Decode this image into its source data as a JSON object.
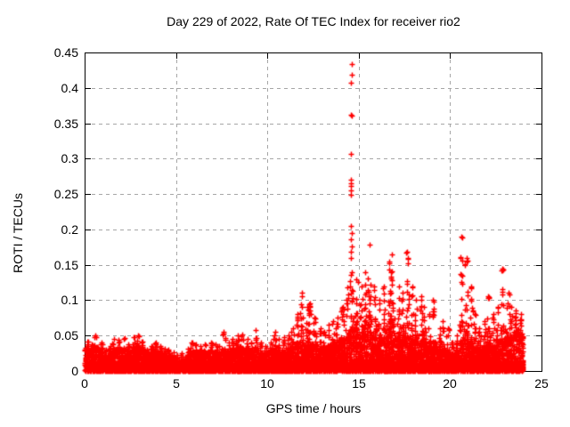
{
  "chart_data": {
    "type": "scatter",
    "title": "Day 229 of 2022, Rate Of TEC Index for receiver rio2",
    "xlabel": "GPS time / hours",
    "ylabel": "ROTI / TECUs",
    "xlim": [
      0,
      25
    ],
    "ylim": [
      0,
      0.45
    ],
    "xticks": [
      {
        "value": 0,
        "label": "0"
      },
      {
        "value": 5,
        "label": "5"
      },
      {
        "value": 10,
        "label": "10"
      },
      {
        "value": 15,
        "label": "15"
      },
      {
        "value": 20,
        "label": "20"
      },
      {
        "value": 25,
        "label": "25"
      }
    ],
    "yticks": [
      {
        "value": 0,
        "label": "0"
      },
      {
        "value": 0.05,
        "label": "0.05"
      },
      {
        "value": 0.1,
        "label": "0.1"
      },
      {
        "value": 0.15,
        "label": "0.15"
      },
      {
        "value": 0.2,
        "label": "0.2"
      },
      {
        "value": 0.25,
        "label": "0.25"
      },
      {
        "value": 0.3,
        "label": "0.3"
      },
      {
        "value": 0.35,
        "label": "0.35"
      },
      {
        "value": 0.4,
        "label": "0.4"
      },
      {
        "value": 0.45,
        "label": "0.45"
      }
    ],
    "grid": true,
    "legend": "none",
    "marker": "plus",
    "colors": {
      "points": "#ff0000",
      "grid": "#a6a6a6",
      "border": "#000000",
      "background": "#ffffff",
      "text": "#000000"
    },
    "series": [
      {
        "name": "ROTI",
        "data_span_hours": [
          0,
          24
        ],
        "density_bins": {
          "bin_width_hours": 0.25,
          "start_hour": 0,
          "band_top": [
            0.03,
            0.028,
            0.03,
            0.026,
            0.02,
            0.022,
            0.028,
            0.03,
            0.028,
            0.024,
            0.03,
            0.032,
            0.028,
            0.02,
            0.024,
            0.028,
            0.025,
            0.022,
            0.02,
            0.016,
            0.012,
            0.015,
            0.02,
            0.025,
            0.024,
            0.02,
            0.024,
            0.028,
            0.025,
            0.022,
            0.026,
            0.024,
            0.028,
            0.03,
            0.03,
            0.028,
            0.024,
            0.028,
            0.024,
            0.022,
            0.024,
            0.028,
            0.024,
            0.026,
            0.03,
            0.032,
            0.034,
            0.038,
            0.034,
            0.034,
            0.032,
            0.03,
            0.03,
            0.032,
            0.034,
            0.036,
            0.04,
            0.045,
            0.055,
            0.05,
            0.045,
            0.05,
            0.05,
            0.045,
            0.04,
            0.045,
            0.05,
            0.05,
            0.045,
            0.04,
            0.045,
            0.04,
            0.04,
            0.038,
            0.035,
            0.032,
            0.03,
            0.028,
            0.025,
            0.025,
            0.022,
            0.025,
            0.04,
            0.045,
            0.035,
            0.03,
            0.028,
            0.03,
            0.035,
            0.032,
            0.035,
            0.04,
            0.04,
            0.045,
            0.055,
            0.048
          ],
          "spike_top": [
            0.042,
            0.038,
            0.05,
            0.04,
            0.03,
            0.035,
            0.045,
            0.044,
            0.046,
            0.038,
            0.048,
            0.05,
            0.042,
            0.03,
            0.035,
            0.04,
            0.035,
            0.032,
            0.03,
            0.026,
            0.022,
            0.025,
            0.032,
            0.04,
            0.038,
            0.035,
            0.038,
            0.04,
            0.038,
            0.035,
            0.055,
            0.04,
            0.045,
            0.05,
            0.052,
            0.045,
            0.04,
            0.058,
            0.04,
            0.035,
            0.04,
            0.055,
            0.045,
            0.048,
            0.05,
            0.06,
            0.08,
            0.11,
            0.09,
            0.095,
            0.075,
            0.06,
            0.055,
            0.065,
            0.07,
            0.075,
            0.09,
            0.118,
            0.16,
            0.13,
            0.12,
            0.14,
            0.178,
            0.12,
            0.1,
            0.12,
            0.155,
            0.165,
            0.12,
            0.11,
            0.168,
            0.12,
            0.1,
            0.105,
            0.09,
            0.08,
            0.1,
            0.06,
            0.07,
            0.06,
            0.04,
            0.05,
            0.19,
            0.16,
            0.12,
            0.08,
            0.06,
            0.07,
            0.105,
            0.08,
            0.09,
            0.145,
            0.11,
            0.09,
            0.085,
            0.08
          ]
        },
        "outlier_points": [
          [
            14.6,
            0.434
          ],
          [
            14.6,
            0.419
          ],
          [
            14.58,
            0.407
          ],
          [
            14.57,
            0.362
          ],
          [
            14.6,
            0.361
          ],
          [
            14.57,
            0.307
          ],
          [
            14.58,
            0.27
          ],
          [
            14.56,
            0.265
          ],
          [
            14.59,
            0.262
          ],
          [
            14.57,
            0.255
          ],
          [
            14.55,
            0.249
          ],
          [
            14.56,
            0.205
          ],
          [
            14.61,
            0.195
          ],
          [
            14.59,
            0.186
          ],
          [
            14.6,
            0.176
          ],
          [
            14.58,
            0.168
          ]
        ]
      }
    ]
  }
}
